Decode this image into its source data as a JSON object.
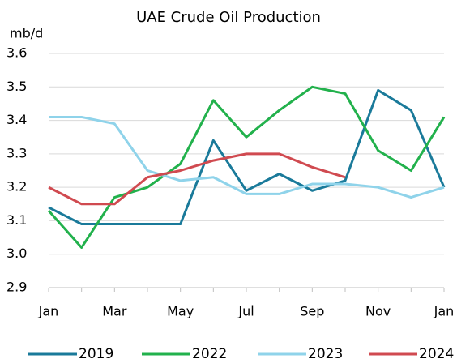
{
  "chart_data": {
    "type": "line",
    "title": "UAE Crude Oil Production",
    "y_label": "mb/d",
    "categories": [
      "Jan",
      null,
      "Mar",
      null,
      "May",
      null,
      "Jul",
      null,
      "Sep",
      null,
      "Nov",
      null,
      "Jan"
    ],
    "series": [
      {
        "name": "2019",
        "color": "#1a7a9a",
        "values": [
          3.14,
          3.09,
          3.09,
          3.09,
          3.09,
          3.34,
          3.19,
          3.24,
          3.19,
          3.22,
          3.49,
          3.43,
          3.2
        ]
      },
      {
        "name": "2022",
        "color": "#22b14c",
        "values": [
          3.13,
          3.02,
          3.17,
          3.2,
          3.27,
          3.46,
          3.35,
          3.43,
          3.5,
          3.48,
          3.31,
          3.25,
          3.41
        ]
      },
      {
        "name": "2023",
        "color": "#8fd3ea",
        "values": [
          3.41,
          3.41,
          3.39,
          3.25,
          3.22,
          3.23,
          3.18,
          3.18,
          3.21,
          3.21,
          3.2,
          3.17,
          3.2
        ]
      },
      {
        "name": "2024",
        "color": "#d04a50",
        "values": [
          3.2,
          3.15,
          3.15,
          3.23,
          3.25,
          3.28,
          3.3,
          3.3,
          3.26,
          3.23,
          null,
          null,
          null
        ]
      }
    ],
    "ylim": [
      2.9,
      3.6
    ],
    "yticks": [
      2.9,
      {
        "value": 3,
        "label": "3.0"
      },
      3.1,
      3.2,
      3.3,
      3.4,
      3.5,
      3.6
    ],
    "grid": true,
    "legend": "bottom"
  }
}
